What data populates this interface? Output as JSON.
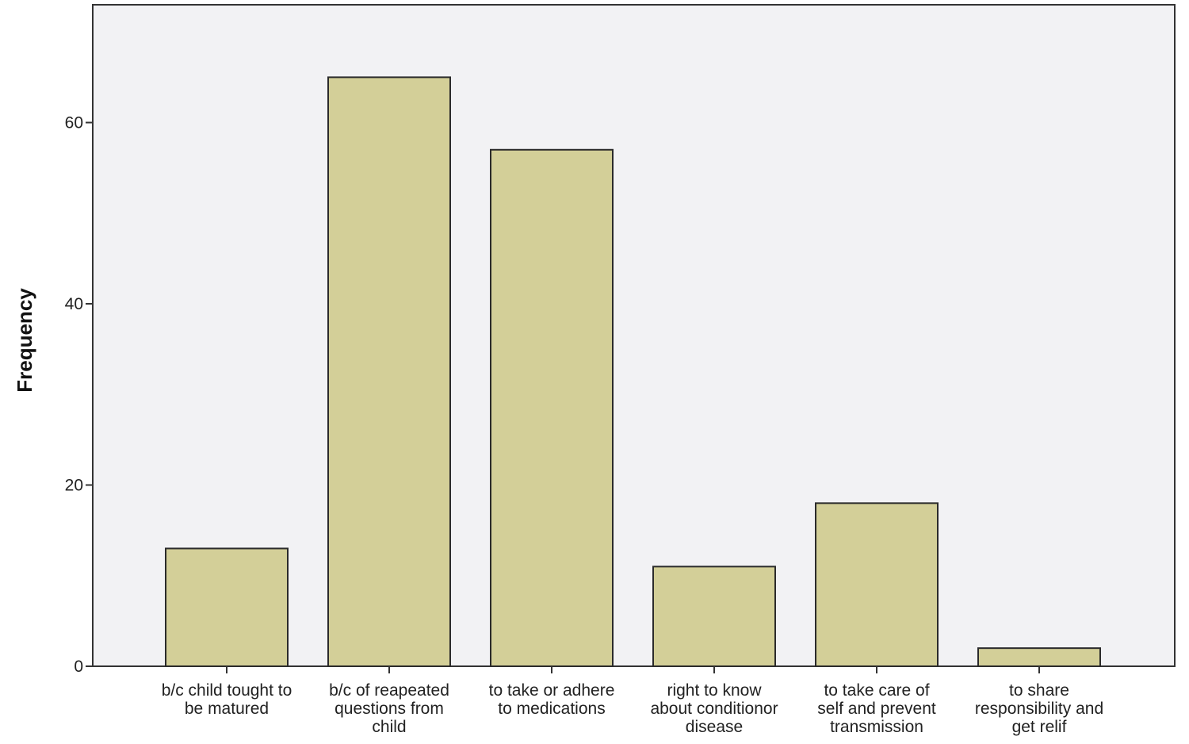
{
  "chart_data": {
    "type": "bar",
    "categories": [
      [
        "b/c child tought to",
        "be matured"
      ],
      [
        "b/c of reapeated",
        "questions from",
        "child"
      ],
      [
        "to take or adhere",
        "to medications"
      ],
      [
        "right to know",
        "about conditionor",
        "disease"
      ],
      [
        "to take care of",
        "self and prevent",
        "transmission"
      ],
      [
        "to share",
        "responsibility and",
        "get relif"
      ]
    ],
    "values": [
      13,
      65,
      57,
      11,
      18,
      2
    ],
    "xlabel": "",
    "ylabel": "Frequency",
    "ylim": [
      0,
      73
    ],
    "yticks": [
      "0",
      "20",
      "40",
      "60"
    ],
    "ytick_values": [
      0,
      20,
      40,
      60
    ],
    "grid": false,
    "colors": {
      "bar_fill": "#d3cf98",
      "bar_stroke": "#2b2b2b",
      "plot_bg": "#f2f2f4",
      "axis": "#333333"
    }
  }
}
